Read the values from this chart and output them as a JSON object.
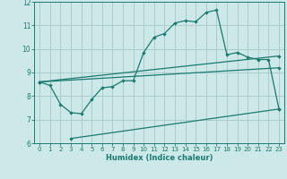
{
  "background_color": "#cce8e8",
  "grid_color": "#aacccc",
  "line_color": "#1a7a6e",
  "xlabel": "Humidex (Indice chaleur)",
  "xlim": [
    -0.5,
    23.5
  ],
  "ylim": [
    6,
    12
  ],
  "xticks": [
    0,
    1,
    2,
    3,
    4,
    5,
    6,
    7,
    8,
    9,
    10,
    11,
    12,
    13,
    14,
    15,
    16,
    17,
    18,
    19,
    20,
    21,
    22,
    23
  ],
  "yticks": [
    6,
    7,
    8,
    9,
    10,
    11,
    12
  ],
  "line1_x": [
    0,
    1,
    2,
    3,
    4,
    5,
    6,
    7,
    8,
    9,
    10,
    11,
    12,
    13,
    14,
    15,
    16,
    17,
    18,
    19,
    20,
    21,
    22,
    23
  ],
  "line1_y": [
    8.6,
    8.45,
    7.65,
    7.3,
    7.25,
    7.85,
    8.35,
    8.4,
    8.65,
    8.65,
    9.85,
    10.5,
    10.65,
    11.1,
    11.2,
    11.15,
    11.55,
    11.65,
    9.75,
    9.85,
    9.65,
    9.55,
    9.55,
    7.45
  ],
  "line2_x": [
    0,
    23
  ],
  "line2_y": [
    8.6,
    9.7
  ],
  "line3_x": [
    0,
    23
  ],
  "line3_y": [
    8.6,
    9.2
  ],
  "line4_x": [
    3,
    23
  ],
  "line4_y": [
    6.2,
    7.45
  ]
}
